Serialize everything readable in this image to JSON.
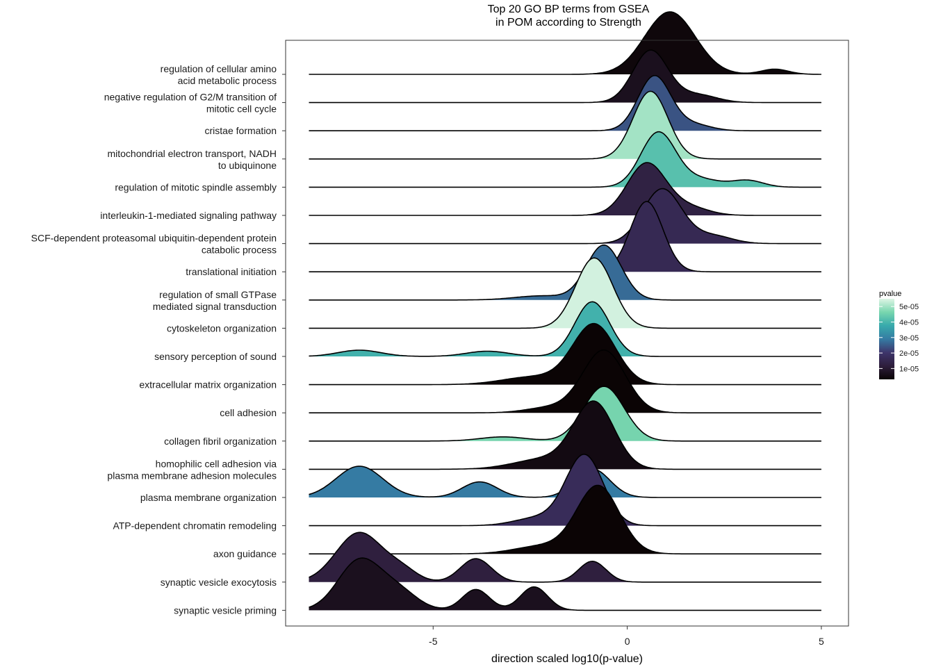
{
  "chart_data": {
    "type": "ridgeline",
    "title_lines": [
      "Top 20 GO BP terms from GSEA",
      "in POM according to Strength"
    ],
    "xlabel": "direction scaled log10(p-value)",
    "xlim": [
      -8.8,
      5.7
    ],
    "x_ticks": [
      -5,
      0,
      5
    ],
    "x_tick_labels": [
      "-5",
      "0",
      "5"
    ],
    "x_range": [
      -8.2,
      5.0
    ],
    "legend": {
      "title": "pvalue",
      "position": "right",
      "range": [
        3e-06,
        5.5e-05
      ],
      "ticks": [
        1e-05,
        2e-05,
        3e-05,
        4e-05,
        5e-05
      ],
      "tick_labels": [
        "1e-05",
        "2e-05",
        "3e-05",
        "4e-05",
        "5e-05"
      ],
      "colors": [
        "#0b0405",
        "#2e1e3c",
        "#3e356b",
        "#357ba3",
        "#38aaac",
        "#78d6ae",
        "#def5e5"
      ]
    },
    "terms": [
      {
        "label": [
          "regulation of cellular amino",
          "acid metabolic process"
        ],
        "pvalue": 4e-06,
        "peaks": [
          [
            1.1,
            0.65,
            1.2
          ],
          [
            3.8,
            0.35,
            0.1
          ]
        ]
      },
      {
        "label": [
          "negative regulation of G2/M transition of",
          "mitotic cell cycle"
        ],
        "pvalue": 7e-06,
        "peaks": [
          [
            0.6,
            0.45,
            1.0
          ],
          [
            1.8,
            0.5,
            0.15
          ]
        ]
      },
      {
        "label": [
          "cristae formation"
        ],
        "pvalue": 2.4e-05,
        "peaks": [
          [
            0.7,
            0.42,
            1.05
          ],
          [
            1.7,
            0.45,
            0.12
          ]
        ]
      },
      {
        "label": [
          "mitochondrial electron transport, NADH",
          "to ubiquinone"
        ],
        "pvalue": 5e-05,
        "peaks": [
          [
            0.6,
            0.45,
            1.3
          ]
        ]
      },
      {
        "label": [
          "regulation of mitotic spindle assembly"
        ],
        "pvalue": 4.2e-05,
        "peaks": [
          [
            0.8,
            0.45,
            1.05
          ],
          [
            1.9,
            0.5,
            0.15
          ],
          [
            3.1,
            0.4,
            0.13
          ]
        ]
      },
      {
        "label": [
          "interleukin-1-mediated signaling pathway"
        ],
        "pvalue": 1.3e-05,
        "peaks": [
          [
            0.5,
            0.5,
            1.0
          ],
          [
            1.6,
            0.5,
            0.15
          ]
        ]
      },
      {
        "label": [
          "SCF-dependent proteasomal ubiquitin-dependent protein",
          "catabolic process"
        ],
        "pvalue": 1.6e-05,
        "peaks": [
          [
            0.9,
            0.5,
            1.05
          ],
          [
            2.2,
            0.5,
            0.15
          ]
        ]
      },
      {
        "label": [
          "translational initiation"
        ],
        "pvalue": 1.6e-05,
        "peaks": [
          [
            0.5,
            0.42,
            1.35
          ]
        ]
      },
      {
        "label": [
          "regulation of small GTPase",
          "mediated signal transduction"
        ],
        "pvalue": 2.7e-05,
        "peaks": [
          [
            -0.6,
            0.45,
            1.05
          ],
          [
            -2.2,
            0.7,
            0.08
          ]
        ]
      },
      {
        "label": [
          "cytoskeleton organization"
        ],
        "pvalue": 5.4e-05,
        "peaks": [
          [
            -0.85,
            0.48,
            1.35
          ]
        ]
      },
      {
        "label": [
          "sensory perception of sound"
        ],
        "pvalue": 3.9e-05,
        "peaks": [
          [
            -0.9,
            0.45,
            1.05
          ],
          [
            -6.9,
            0.55,
            0.12
          ],
          [
            -3.6,
            0.55,
            0.1
          ]
        ]
      },
      {
        "label": [
          "extracellular matrix organization"
        ],
        "pvalue": 3e-06,
        "peaks": [
          [
            -0.85,
            0.55,
            1.15
          ],
          [
            -2.4,
            0.8,
            0.15
          ]
        ]
      },
      {
        "label": [
          "cell adhesion"
        ],
        "pvalue": 3e-06,
        "peaks": [
          [
            -0.6,
            0.55,
            1.2
          ],
          [
            -2.0,
            0.6,
            0.1
          ]
        ]
      },
      {
        "label": [
          "collagen fibril organization"
        ],
        "pvalue": 4.6e-05,
        "peaks": [
          [
            -0.6,
            0.52,
            1.05
          ],
          [
            -3.2,
            0.6,
            0.08
          ]
        ]
      },
      {
        "label": [
          "homophilic cell adhesion via",
          "plasma membrane adhesion molecules"
        ],
        "pvalue": 5e-06,
        "peaks": [
          [
            -0.85,
            0.52,
            1.25
          ],
          [
            -2.1,
            0.8,
            0.2
          ]
        ]
      },
      {
        "label": [
          "plasma membrane organization"
        ],
        "pvalue": 2.9e-05,
        "peaks": [
          [
            -0.9,
            0.45,
            0.55
          ],
          [
            -6.9,
            0.6,
            0.6
          ],
          [
            -3.8,
            0.45,
            0.3
          ]
        ]
      },
      {
        "label": [
          "ATP-dependent chromatin remodeling"
        ],
        "pvalue": 1.7e-05,
        "peaks": [
          [
            -1.1,
            0.48,
            1.35
          ],
          [
            -2.3,
            0.6,
            0.15
          ]
        ]
      },
      {
        "label": [
          "axon guidance"
        ],
        "pvalue": 3e-06,
        "peaks": [
          [
            -0.75,
            0.55,
            1.3
          ],
          [
            -2.2,
            0.7,
            0.15
          ]
        ]
      },
      {
        "label": [
          "synaptic vesicle exocytosis"
        ],
        "pvalue": 1.2e-05,
        "peaks": [
          [
            -6.9,
            0.6,
            0.95
          ],
          [
            -5.8,
            0.4,
            0.2
          ],
          [
            -3.9,
            0.4,
            0.45
          ],
          [
            -0.9,
            0.35,
            0.4
          ]
        ]
      },
      {
        "label": [
          "synaptic vesicle priming"
        ],
        "pvalue": 7e-06,
        "peaks": [
          [
            -6.9,
            0.55,
            0.95
          ],
          [
            -5.9,
            0.5,
            0.35
          ],
          [
            -3.9,
            0.35,
            0.4
          ],
          [
            -2.4,
            0.35,
            0.45
          ]
        ]
      }
    ]
  }
}
